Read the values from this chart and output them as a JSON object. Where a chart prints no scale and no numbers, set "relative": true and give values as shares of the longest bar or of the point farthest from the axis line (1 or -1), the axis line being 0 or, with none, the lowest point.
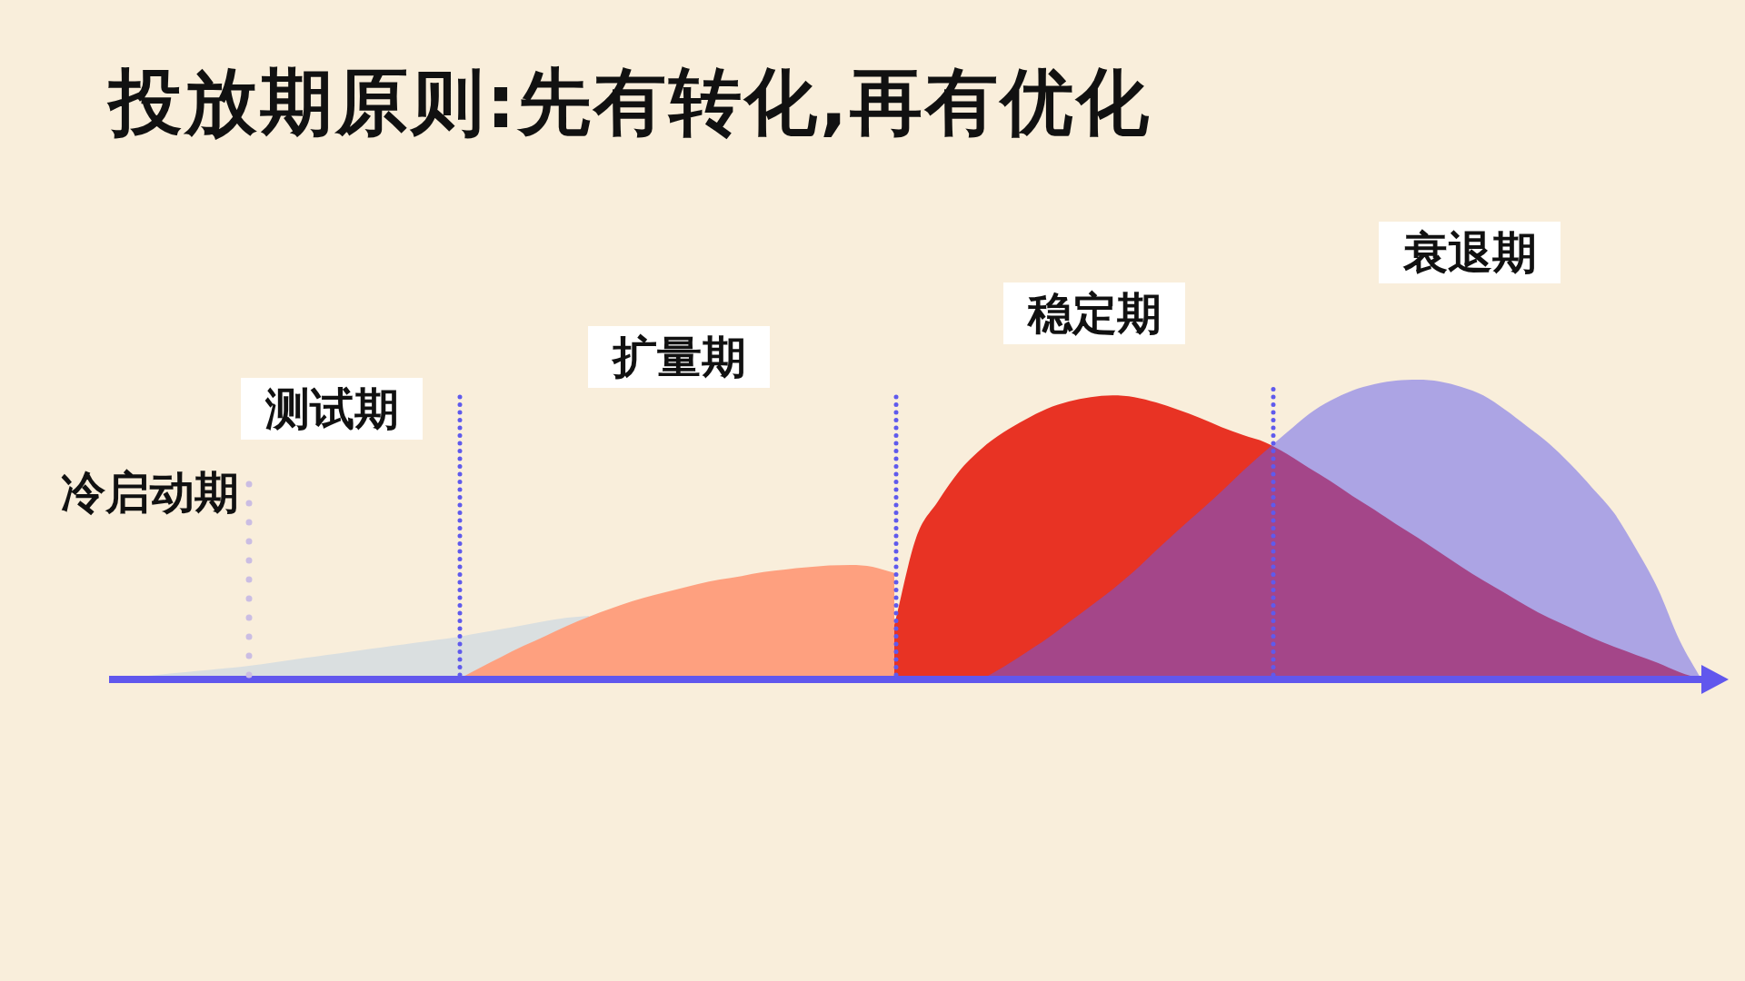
{
  "chart_data": {
    "type": "area",
    "title": "投放期原则:先有转化,再有优化",
    "relative": true,
    "categories": [
      null,
      null,
      null,
      null,
      null,
      null,
      null,
      null,
      null,
      null,
      null,
      null,
      null,
      null,
      null,
      null,
      null,
      null,
      null,
      null,
      null,
      null,
      null,
      null,
      null,
      null,
      null,
      null,
      null,
      null,
      null,
      null,
      null,
      null,
      null,
      null,
      null,
      null,
      null,
      null,
      null,
      null,
      null,
      null,
      null,
      null,
      null,
      null,
      null,
      null,
      null,
      null,
      null,
      null,
      null,
      null,
      null,
      null,
      null,
      null,
      null,
      null,
      null,
      null,
      null,
      null,
      null,
      null,
      null,
      null,
      null,
      null,
      null,
      null
    ],
    "series": [
      {
        "color": "#dadfe0",
        "values": [
          0,
          0.007,
          0.014,
          0.021,
          0.028,
          0.035,
          0.042,
          0.051,
          0.061,
          0.072,
          0.082,
          0.092,
          0.102,
          0.112,
          0.122,
          0.132,
          0.142,
          0.155,
          0.168,
          0.181,
          0.195,
          0.206,
          0.212,
          null,
          null,
          null,
          null,
          null,
          null,
          null,
          null,
          null,
          null,
          null,
          null,
          null,
          null,
          null,
          null,
          null,
          null,
          null,
          null,
          null,
          null,
          null,
          null,
          null,
          null,
          null,
          null,
          null,
          null,
          null,
          null,
          null,
          null,
          null,
          null,
          null,
          null,
          null,
          null,
          null,
          null,
          null,
          null,
          null,
          null,
          null,
          null,
          null,
          null,
          null
        ]
      },
      {
        "color": "#fea07f",
        "values": [
          null,
          null,
          null,
          null,
          null,
          null,
          null,
          null,
          null,
          null,
          null,
          null,
          null,
          null,
          null,
          null,
          0,
          0.039,
          0.076,
          0.112,
          0.145,
          0.179,
          0.209,
          0.236,
          0.261,
          0.282,
          0.3,
          0.318,
          0.333,
          0.345,
          0.358,
          0.367,
          0.374,
          0.38,
          0.382,
          0.376,
          0.355,
          null,
          null,
          null,
          null,
          null,
          null,
          null,
          null,
          null,
          null,
          null,
          null,
          null,
          null,
          null,
          null,
          null,
          null,
          null,
          null,
          null,
          null,
          null,
          null,
          null,
          null,
          null,
          null,
          null,
          null,
          null,
          null,
          null,
          null,
          null,
          null,
          null
        ]
      },
      {
        "color": "#e83324",
        "values": [
          null,
          null,
          null,
          null,
          null,
          null,
          null,
          null,
          null,
          null,
          null,
          null,
          null,
          null,
          null,
          null,
          null,
          null,
          null,
          null,
          null,
          null,
          null,
          null,
          null,
          null,
          null,
          null,
          null,
          null,
          null,
          null,
          null,
          null,
          null,
          null,
          0.182,
          0.473,
          0.594,
          0.697,
          0.77,
          0.824,
          0.867,
          0.903,
          0.927,
          0.942,
          0.948,
          0.942,
          0.924,
          0.9,
          0.873,
          0.842,
          0.815,
          0.791,
          0.752,
          0.706,
          0.661,
          0.612,
          0.567,
          0.518,
          0.473,
          0.424,
          0.376,
          0.33,
          0.288,
          0.245,
          0.206,
          0.173,
          0.139,
          0.109,
          0.082,
          0.055,
          0.024,
          0
        ]
      },
      {
        "color": "#5f5aed",
        "values": [
          null,
          null,
          null,
          null,
          null,
          null,
          null,
          null,
          null,
          null,
          null,
          null,
          null,
          null,
          null,
          null,
          null,
          null,
          null,
          null,
          null,
          null,
          null,
          null,
          null,
          null,
          null,
          null,
          null,
          null,
          null,
          null,
          null,
          null,
          null,
          null,
          null,
          null,
          null,
          null,
          0,
          0.042,
          0.088,
          0.136,
          0.191,
          0.245,
          0.3,
          0.361,
          0.43,
          0.497,
          0.561,
          0.627,
          0.697,
          0.761,
          0.824,
          0.885,
          0.93,
          0.964,
          0.985,
          0.997,
          1,
          0.994,
          0.976,
          0.948,
          0.9,
          0.845,
          0.788,
          0.718,
          0.639,
          0.555,
          0.436,
          0.303,
          0.13,
          0
        ]
      }
    ],
    "annotations": [
      "冷启动期",
      "测试期",
      "扩量期",
      "稳定期",
      "衰退期"
    ]
  }
}
